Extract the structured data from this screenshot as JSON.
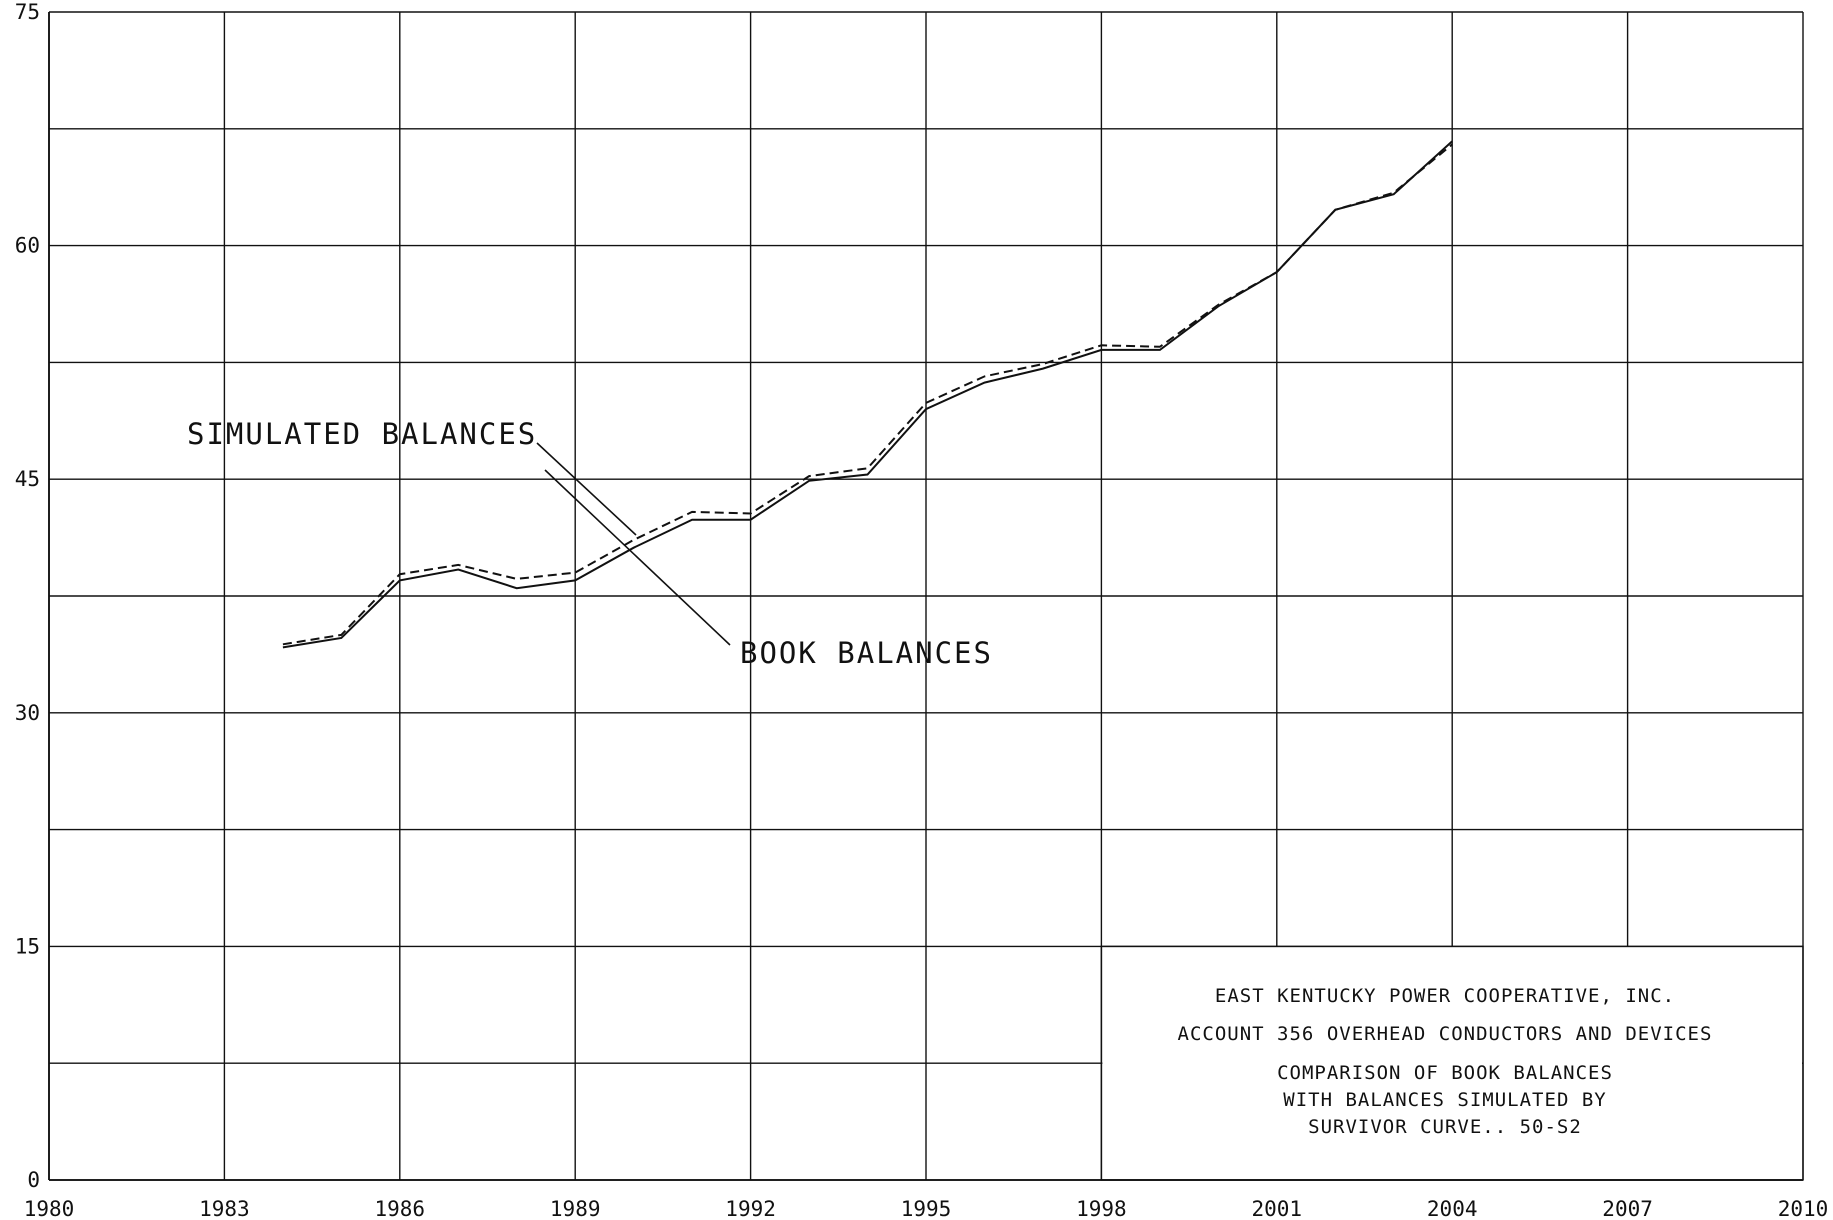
{
  "chart_data": {
    "type": "line",
    "x_ticks": [
      "1980",
      "1983",
      "1986",
      "1989",
      "1992",
      "1995",
      "1998",
      "2001",
      "2004",
      "2007",
      "2010"
    ],
    "y_ticks": [
      "0",
      "15",
      "30",
      "45",
      "60",
      "75"
    ],
    "xlim": [
      1980,
      2010
    ],
    "ylim": [
      0,
      75
    ],
    "grid": true,
    "series": [
      {
        "name": "BOOK BALANCES",
        "style": "solid",
        "x": [
          1984,
          1985,
          1986,
          1987,
          1988,
          1989,
          1990,
          1991,
          1992,
          1993,
          1994,
          1995,
          1996,
          1997,
          1998,
          1999,
          2000,
          2001,
          2002,
          2003,
          2004
        ],
        "y": [
          34.2,
          34.8,
          38.5,
          39.2,
          38.0,
          38.5,
          40.6,
          42.4,
          42.4,
          44.9,
          45.3,
          49.5,
          51.2,
          52.1,
          53.3,
          53.3,
          56.1,
          58.3,
          62.3,
          63.3,
          66.7
        ]
      },
      {
        "name": "SIMULATED BALANCES",
        "style": "dashed",
        "x": [
          1984,
          1985,
          1986,
          1987,
          1988,
          1989,
          1990,
          1991,
          1992,
          1993,
          1994,
          1995,
          1996,
          1997,
          1998,
          1999,
          2000,
          2001,
          2002,
          2003,
          2004
        ],
        "y": [
          34.4,
          35.0,
          38.9,
          39.5,
          38.6,
          39.0,
          41.1,
          42.9,
          42.8,
          45.2,
          45.7,
          49.9,
          51.6,
          52.4,
          53.6,
          53.5,
          56.2,
          58.3,
          62.3,
          63.4,
          66.5
        ]
      }
    ],
    "annotations": {
      "simulated_label": "SIMULATED BALANCES",
      "book_label": "BOOK BALANCES"
    },
    "title_block": {
      "line1": "EAST KENTUCKY POWER COOPERATIVE, INC.",
      "line2": "ACCOUNT 356 OVERHEAD CONDUCTORS AND DEVICES",
      "line3": "COMPARISON OF BOOK BALANCES",
      "line4": "WITH BALANCES SIMULATED BY",
      "line5": "SURVIVOR CURVE..  50-S2"
    }
  }
}
